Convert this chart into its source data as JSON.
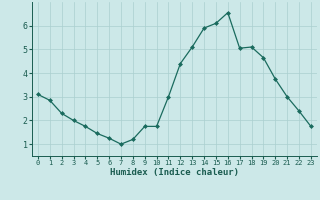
{
  "x": [
    0,
    1,
    2,
    3,
    4,
    5,
    6,
    7,
    8,
    9,
    10,
    11,
    12,
    13,
    14,
    15,
    16,
    17,
    18,
    19,
    20,
    21,
    22,
    23
  ],
  "y": [
    3.1,
    2.85,
    2.3,
    2.0,
    1.75,
    1.45,
    1.25,
    1.0,
    1.2,
    1.75,
    1.75,
    3.0,
    4.4,
    5.1,
    5.9,
    6.1,
    6.55,
    5.05,
    5.1,
    4.65,
    3.75,
    3.0,
    2.4,
    1.75
  ],
  "line_color": "#1a6b5e",
  "marker": "D",
  "marker_size": 2.0,
  "bg_color": "#cce8e8",
  "grid_color": "#aacfcf",
  "xlabel": "Humidex (Indice chaleur)",
  "xlim": [
    -0.5,
    23.5
  ],
  "ylim": [
    0.5,
    7.0
  ],
  "yticks": [
    1,
    2,
    3,
    4,
    5,
    6
  ],
  "xticks": [
    0,
    1,
    2,
    3,
    4,
    5,
    6,
    7,
    8,
    9,
    10,
    11,
    12,
    13,
    14,
    15,
    16,
    17,
    18,
    19,
    20,
    21,
    22,
    23
  ],
  "tick_color": "#1a5c50",
  "label_color": "#1a5c50",
  "font_size_x": 5.0,
  "font_size_y": 6.0,
  "font_size_label": 6.5
}
